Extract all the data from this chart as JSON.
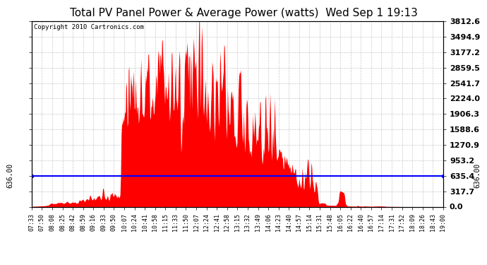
{
  "title": "Total PV Panel Power & Average Power (watts)  Wed Sep 1 19:13",
  "copyright": "Copyright 2010 Cartronics.com",
  "average_line": 636.0,
  "ylim": [
    0,
    3812.6
  ],
  "ytick_vals": [
    0.0,
    317.7,
    635.4,
    953.2,
    1270.9,
    1588.6,
    1906.3,
    2224.0,
    2541.7,
    2859.5,
    3177.2,
    3494.9,
    3812.6
  ],
  "ytick_labels": [
    "0.0",
    "317.7",
    "635.4",
    "953.2",
    "1270.9",
    "1588.6",
    "1906.3",
    "2224.0",
    "2541.7",
    "2859.5",
    "3177.2",
    "3494.9",
    "3812.6"
  ],
  "avg_label": "636.00",
  "fill_color": "#FF0000",
  "line_color": "#0000FF",
  "background_color": "#FFFFFF",
  "grid_color": "#BBBBBB",
  "title_fontsize": 11,
  "copyright_fontsize": 6.5,
  "tick_fontsize": 8,
  "xtick_labels": [
    "07:33",
    "07:50",
    "08:08",
    "08:25",
    "08:42",
    "08:59",
    "09:16",
    "09:33",
    "09:50",
    "10:07",
    "10:24",
    "10:41",
    "10:58",
    "11:15",
    "11:33",
    "11:50",
    "12:07",
    "12:24",
    "12:41",
    "12:58",
    "13:15",
    "13:32",
    "13:49",
    "14:06",
    "14:23",
    "14:40",
    "14:57",
    "15:14",
    "15:31",
    "15:48",
    "16:05",
    "16:22",
    "16:40",
    "16:57",
    "17:14",
    "17:31",
    "17:52",
    "18:09",
    "18:26",
    "18:43",
    "19:00"
  ],
  "pv_data_seed": 42,
  "n_points": 690
}
